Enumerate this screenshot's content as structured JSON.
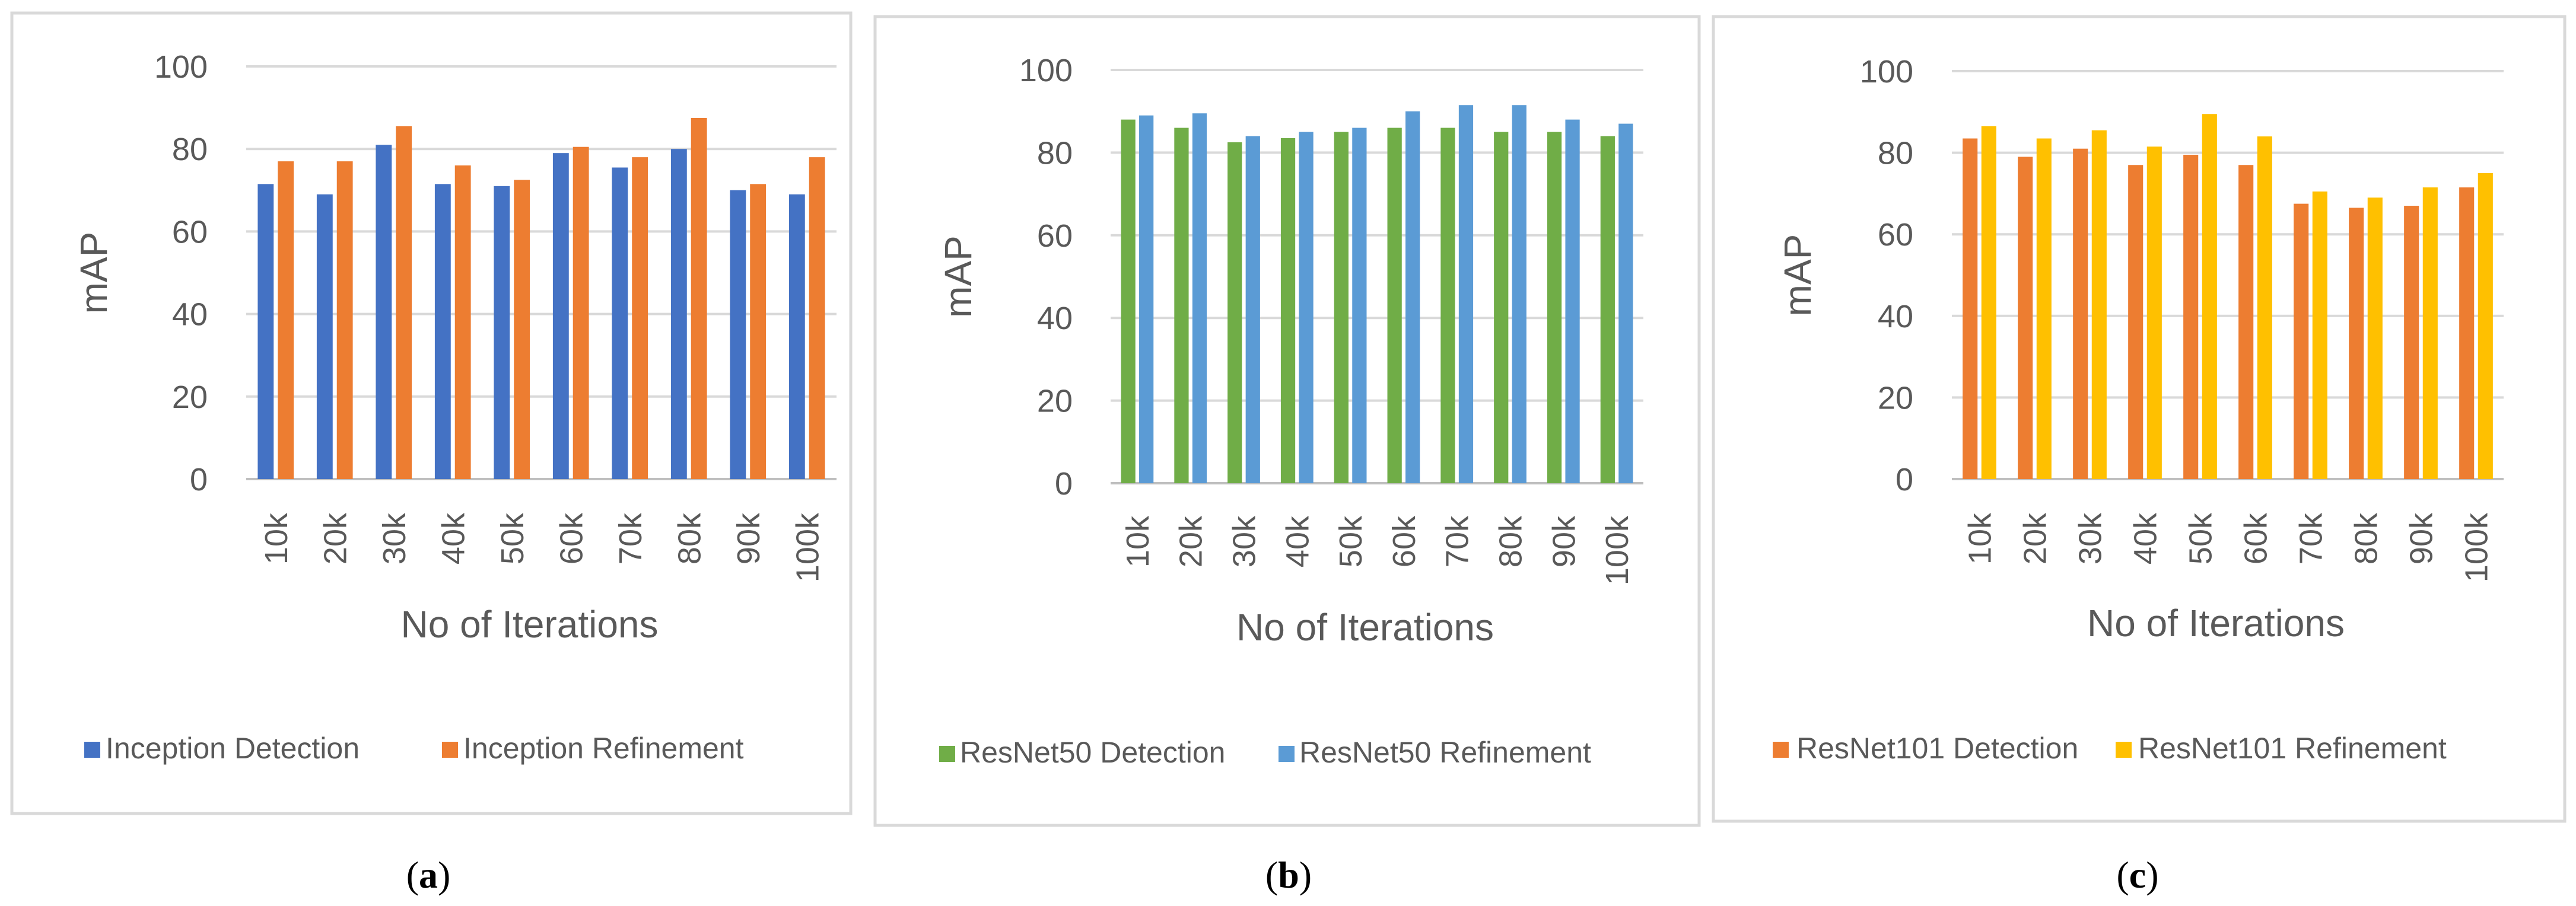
{
  "chart_data": [
    {
      "type": "bar",
      "panel_label": "a",
      "categories": [
        "10k",
        "20k",
        "30k",
        "40k",
        "50k",
        "60k",
        "70k",
        "80k",
        "90k",
        "100k"
      ],
      "xlabel": "No of Iterations",
      "ylabel": "mAP",
      "ylim": [
        0,
        100
      ],
      "yticks": [
        "0",
        "20",
        "40",
        "60",
        "80",
        "100"
      ],
      "grid": true,
      "legend_position": "bottom",
      "series": [
        {
          "name": "Inception Detection",
          "color": "#4472C4",
          "values": [
            71.5,
            69,
            81,
            71.5,
            71,
            79,
            75.5,
            80,
            70,
            69
          ]
        },
        {
          "name": "Inception Refinement",
          "color": "#ED7D31",
          "values": [
            77,
            77,
            85.5,
            76,
            72.5,
            80.5,
            78,
            87.5,
            71.5,
            78
          ]
        }
      ]
    },
    {
      "type": "bar",
      "panel_label": "b",
      "categories": [
        "10k",
        "20k",
        "30k",
        "40k",
        "50k",
        "60k",
        "70k",
        "80k",
        "90k",
        "100k"
      ],
      "xlabel": "No of Iterations",
      "ylabel": "mAP",
      "ylim": [
        0,
        100
      ],
      "yticks": [
        "0",
        "20",
        "40",
        "60",
        "80",
        "100"
      ],
      "grid": true,
      "legend_position": "bottom",
      "series": [
        {
          "name": "ResNet50 Detection",
          "color": "#70AD47",
          "values": [
            88,
            86,
            82.5,
            83.5,
            85,
            86,
            86,
            85,
            85,
            84
          ]
        },
        {
          "name": "ResNet50 Refinement",
          "color": "#5B9BD5",
          "values": [
            89,
            89.5,
            84,
            85,
            86,
            90,
            91.5,
            91.5,
            88,
            87
          ]
        }
      ]
    },
    {
      "type": "bar",
      "panel_label": "c",
      "categories": [
        "10k",
        "20k",
        "30k",
        "40k",
        "50k",
        "60k",
        "70k",
        "80k",
        "90k",
        "100k"
      ],
      "xlabel": "No of Iterations",
      "ylabel": "mAP",
      "ylim": [
        0,
        100
      ],
      "yticks": [
        "0",
        "20",
        "40",
        "60",
        "80",
        "100"
      ],
      "grid": true,
      "legend_position": "bottom",
      "series": [
        {
          "name": "ResNet101 Detection",
          "color": "#ED7D31",
          "values": [
            83.5,
            79,
            81,
            77,
            79.5,
            77,
            67.5,
            66.5,
            67,
            71.5
          ]
        },
        {
          "name": "ResNet101 Refinement",
          "color": "#FFC000",
          "values": [
            86.5,
            83.5,
            85.5,
            81.5,
            89.5,
            84,
            70.5,
            69,
            71.5,
            75
          ]
        }
      ]
    }
  ],
  "captions": [
    {
      "open": "(",
      "letter": "a",
      "close": ")"
    },
    {
      "open": "(",
      "letter": "b",
      "close": ")"
    },
    {
      "open": "(",
      "letter": "c",
      "close": ")"
    }
  ]
}
